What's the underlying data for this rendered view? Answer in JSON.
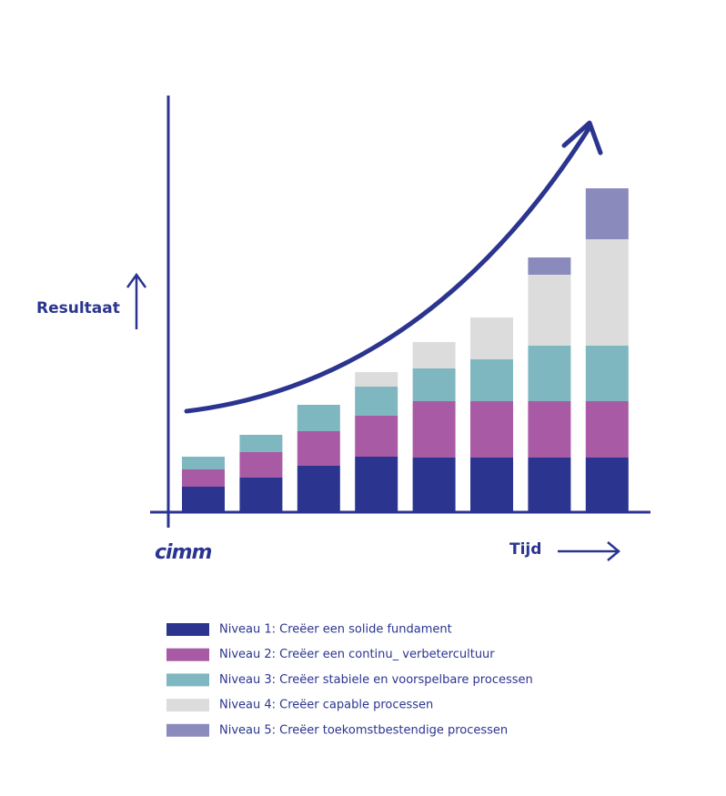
{
  "chart_data": {
    "type": "bar",
    "stacked": true,
    "y_label": "Resultaat",
    "x_label": "Tijd",
    "logo": "cimm",
    "categories": [
      null,
      null,
      null,
      null,
      null,
      null,
      null,
      null
    ],
    "series": [
      {
        "name": "Niveau 1: Creëer een solide fundament",
        "color": "#2b3590",
        "values": [
          28,
          38,
          51,
          61,
          60,
          60,
          60,
          60
        ]
      },
      {
        "name": "Niveau 2: Creëer een continu_ verbetercultuur",
        "color": "#a95aa5",
        "values": [
          19,
          28,
          38,
          45,
          62,
          62,
          62,
          62
        ]
      },
      {
        "name": "Niveau 3: Creëer stabiele en voorspelbare processen",
        "color": "#7fb7c0",
        "values": [
          14,
          19,
          29,
          32,
          36,
          46,
          61,
          61
        ]
      },
      {
        "name": "Niveau 4: Creëer capable processen",
        "color": "#dcdcdc",
        "values": [
          null,
          null,
          null,
          16,
          29,
          46,
          78,
          117
        ]
      },
      {
        "name": "Niveau 5: Creëer toekomstbestendige processen",
        "color": "#8a8bbc",
        "values": [
          null,
          null,
          null,
          null,
          null,
          null,
          19,
          56
        ]
      }
    ],
    "ylim": [
      0,
      360
    ]
  }
}
